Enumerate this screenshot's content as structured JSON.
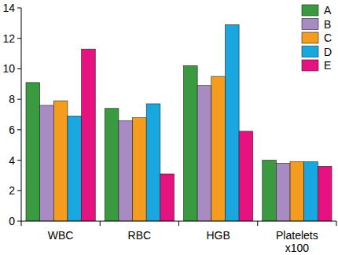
{
  "chart_data": {
    "type": "bar",
    "categories": [
      "WBC",
      "RBC",
      "HGB",
      "Platelets x100"
    ],
    "series": [
      {
        "name": "A",
        "color": "#3a9a3f",
        "values": [
          9.1,
          7.4,
          10.2,
          4.0
        ]
      },
      {
        "name": "B",
        "color": "#a98bc4",
        "values": [
          7.6,
          6.6,
          8.9,
          3.8
        ]
      },
      {
        "name": "C",
        "color": "#f39c1f",
        "values": [
          7.9,
          6.8,
          9.5,
          3.9
        ]
      },
      {
        "name": "D",
        "color": "#1aa7e0",
        "values": [
          6.9,
          7.7,
          12.9,
          3.9
        ]
      },
      {
        "name": "E",
        "color": "#e5127f",
        "values": [
          11.3,
          3.1,
          5.9,
          3.6
        ]
      }
    ],
    "ylim": [
      0,
      14
    ],
    "yticks": [
      0,
      2,
      4,
      6,
      8,
      10,
      12,
      14
    ],
    "grid": false,
    "legend": "top-right"
  }
}
